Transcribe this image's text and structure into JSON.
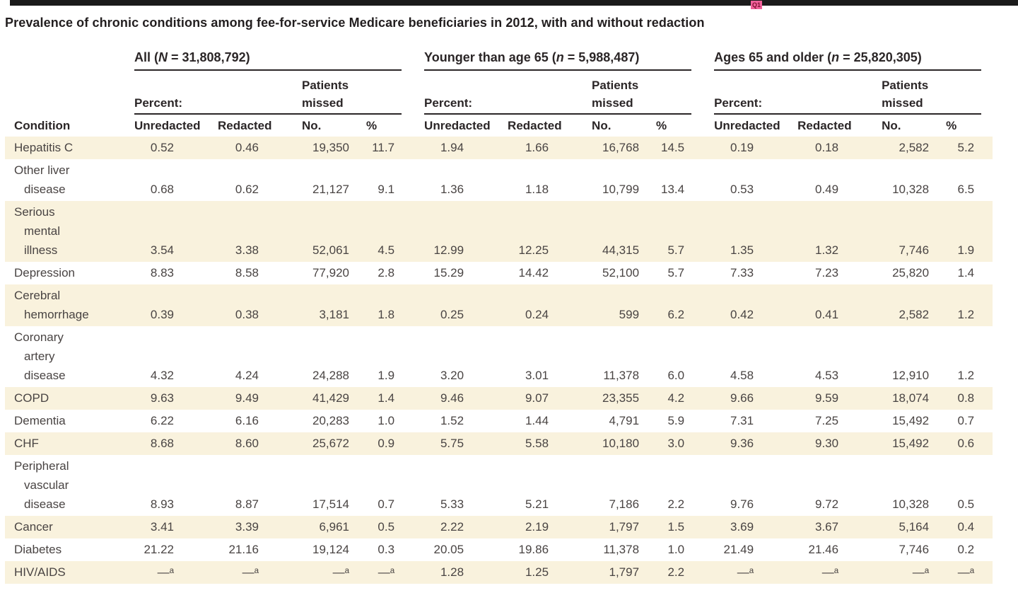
{
  "page": {
    "title": "Prevalence of chronic conditions among fee-for-service Medicare beneficiaries in 2012, with and without redaction",
    "query_marker": "Q1"
  },
  "colors": {
    "stripe": "#f9f2dd",
    "rule": "#2b2627",
    "marker_pink": "#f0609a",
    "marker_text": "#7e1031",
    "text": "#494443"
  },
  "table": {
    "condition_header": "Condition",
    "groups": [
      {
        "pre": "All (",
        "var": "N",
        "post": " = 31,808,792)",
        "percent_label": "Percent:",
        "missed_label": "Patients\nmissed",
        "col_headers": [
          "Unredacted",
          "Redacted",
          "No.",
          "%"
        ]
      },
      {
        "pre": "Younger than age 65 (",
        "var": "n",
        "post": " = 5,988,487)",
        "percent_label": "Percent:",
        "missed_label": "Patients\nmissed",
        "col_headers": [
          "Unredacted",
          "Redacted",
          "No.",
          "%"
        ]
      },
      {
        "pre": "Ages 65 and older (",
        "var": "n",
        "post": " = 25,820,305)",
        "percent_label": "Percent:",
        "missed_label": "Patients\nmissed",
        "col_headers": [
          "Unredacted",
          "Redacted",
          "No.",
          "%"
        ]
      }
    ],
    "rows": [
      {
        "condition": [
          "Hepatitis C"
        ],
        "shaded": true,
        "values": [
          "0.52",
          "0.46",
          "19,350",
          "11.7",
          "1.94",
          "1.66",
          "16,768",
          "14.5",
          "0.19",
          "0.18",
          "2,582",
          "5.2"
        ]
      },
      {
        "condition": [
          "Other liver",
          "disease"
        ],
        "shaded": false,
        "values": [
          "0.68",
          "0.62",
          "21,127",
          "9.1",
          "1.36",
          "1.18",
          "10,799",
          "13.4",
          "0.53",
          "0.49",
          "10,328",
          "6.5"
        ]
      },
      {
        "condition": [
          "Serious",
          "mental",
          "illness"
        ],
        "shaded": true,
        "values": [
          "3.54",
          "3.38",
          "52,061",
          "4.5",
          "12.99",
          "12.25",
          "44,315",
          "5.7",
          "1.35",
          "1.32",
          "7,746",
          "1.9"
        ]
      },
      {
        "condition": [
          "Depression"
        ],
        "shaded": false,
        "values": [
          "8.83",
          "8.58",
          "77,920",
          "2.8",
          "15.29",
          "14.42",
          "52,100",
          "5.7",
          "7.33",
          "7.23",
          "25,820",
          "1.4"
        ]
      },
      {
        "condition": [
          "Cerebral",
          "hemorrhage"
        ],
        "shaded": true,
        "values": [
          "0.39",
          "0.38",
          "3,181",
          "1.8",
          "0.25",
          "0.24",
          "599",
          "6.2",
          "0.42",
          "0.41",
          "2,582",
          "1.2"
        ]
      },
      {
        "condition": [
          "Coronary",
          "artery",
          "disease"
        ],
        "shaded": false,
        "values": [
          "4.32",
          "4.24",
          "24,288",
          "1.9",
          "3.20",
          "3.01",
          "11,378",
          "6.0",
          "4.58",
          "4.53",
          "12,910",
          "1.2"
        ]
      },
      {
        "condition": [
          "COPD"
        ],
        "shaded": true,
        "values": [
          "9.63",
          "9.49",
          "41,429",
          "1.4",
          "9.46",
          "9.07",
          "23,355",
          "4.2",
          "9.66",
          "9.59",
          "18,074",
          "0.8"
        ]
      },
      {
        "condition": [
          "Dementia"
        ],
        "shaded": false,
        "values": [
          "6.22",
          "6.16",
          "20,283",
          "1.0",
          "1.52",
          "1.44",
          "4,791",
          "5.9",
          "7.31",
          "7.25",
          "15,492",
          "0.7"
        ]
      },
      {
        "condition": [
          "CHF"
        ],
        "shaded": true,
        "values": [
          "8.68",
          "8.60",
          "25,672",
          "0.9",
          "5.75",
          "5.58",
          "10,180",
          "3.0",
          "9.36",
          "9.30",
          "15,492",
          "0.6"
        ]
      },
      {
        "condition": [
          "Peripheral",
          "vascular",
          "disease"
        ],
        "shaded": false,
        "values": [
          "8.93",
          "8.87",
          "17,514",
          "0.7",
          "5.33",
          "5.21",
          "7,186",
          "2.2",
          "9.76",
          "9.72",
          "10,328",
          "0.5"
        ]
      },
      {
        "condition": [
          "Cancer"
        ],
        "shaded": true,
        "values": [
          "3.41",
          "3.39",
          "6,961",
          "0.5",
          "2.22",
          "2.19",
          "1,797",
          "1.5",
          "3.69",
          "3.67",
          "5,164",
          "0.4"
        ]
      },
      {
        "condition": [
          "Diabetes"
        ],
        "shaded": false,
        "values": [
          "21.22",
          "21.16",
          "19,124",
          "0.3",
          "20.05",
          "19.86",
          "11,378",
          "1.0",
          "21.49",
          "21.46",
          "7,746",
          "0.2"
        ]
      },
      {
        "condition": [
          "HIV/AIDS"
        ],
        "shaded": true,
        "values": [
          "—ᵃ",
          "—ᵃ",
          "—ᵃ",
          "—ᵃ",
          "1.28",
          "1.25",
          "1,797",
          "2.2",
          "—ᵃ",
          "—ᵃ",
          "—ᵃ",
          "—ᵃ"
        ]
      }
    ]
  }
}
